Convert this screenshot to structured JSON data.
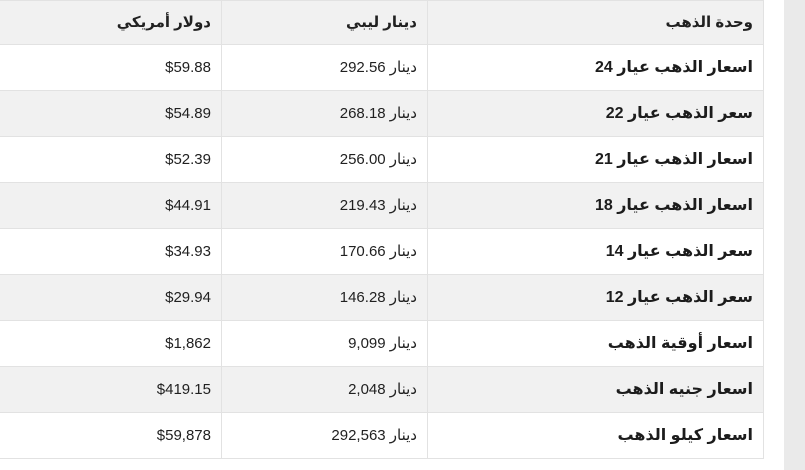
{
  "page": {
    "language": "ar",
    "direction": "rtl"
  },
  "colors": {
    "header_bg": "#f1f1f1",
    "stripe_bg": "#f1f1f1",
    "border": "#e2e2e2",
    "text": "#212121",
    "right_strip": "#eaeaea",
    "page_bg": "#ffffff"
  },
  "table": {
    "columns": [
      {
        "key": "unit",
        "label": "وحدة الذهب"
      },
      {
        "key": "lyd",
        "label": "دينار ليبي"
      },
      {
        "key": "usd",
        "label": "دولار أمريكي"
      }
    ],
    "rows": [
      {
        "unit": "اسعار الذهب عيار 24",
        "lyd": "292.56 دينار",
        "usd": "$59.88"
      },
      {
        "unit": "سعر الذهب عيار 22",
        "lyd": "268.18 دينار",
        "usd": "$54.89"
      },
      {
        "unit": "اسعار الذهب عيار 21",
        "lyd": "256.00 دينار",
        "usd": "$52.39"
      },
      {
        "unit": "اسعار الذهب عيار 18",
        "lyd": "219.43 دينار",
        "usd": "$44.91"
      },
      {
        "unit": "سعر الذهب عيار 14",
        "lyd": "170.66 دينار",
        "usd": "$34.93"
      },
      {
        "unit": "سعر الذهب عيار 12",
        "lyd": "146.28 دينار",
        "usd": "$29.94"
      },
      {
        "unit": "اسعار أوقية الذهب",
        "lyd": "9,099 دينار",
        "usd": "$1,862"
      },
      {
        "unit": "اسعار جنيه الذهب",
        "lyd": "2,048 دينار",
        "usd": "$419.15"
      },
      {
        "unit": "اسعار كيلو الذهب",
        "lyd": "292,563 دينار",
        "usd": "$59,878"
      }
    ]
  }
}
